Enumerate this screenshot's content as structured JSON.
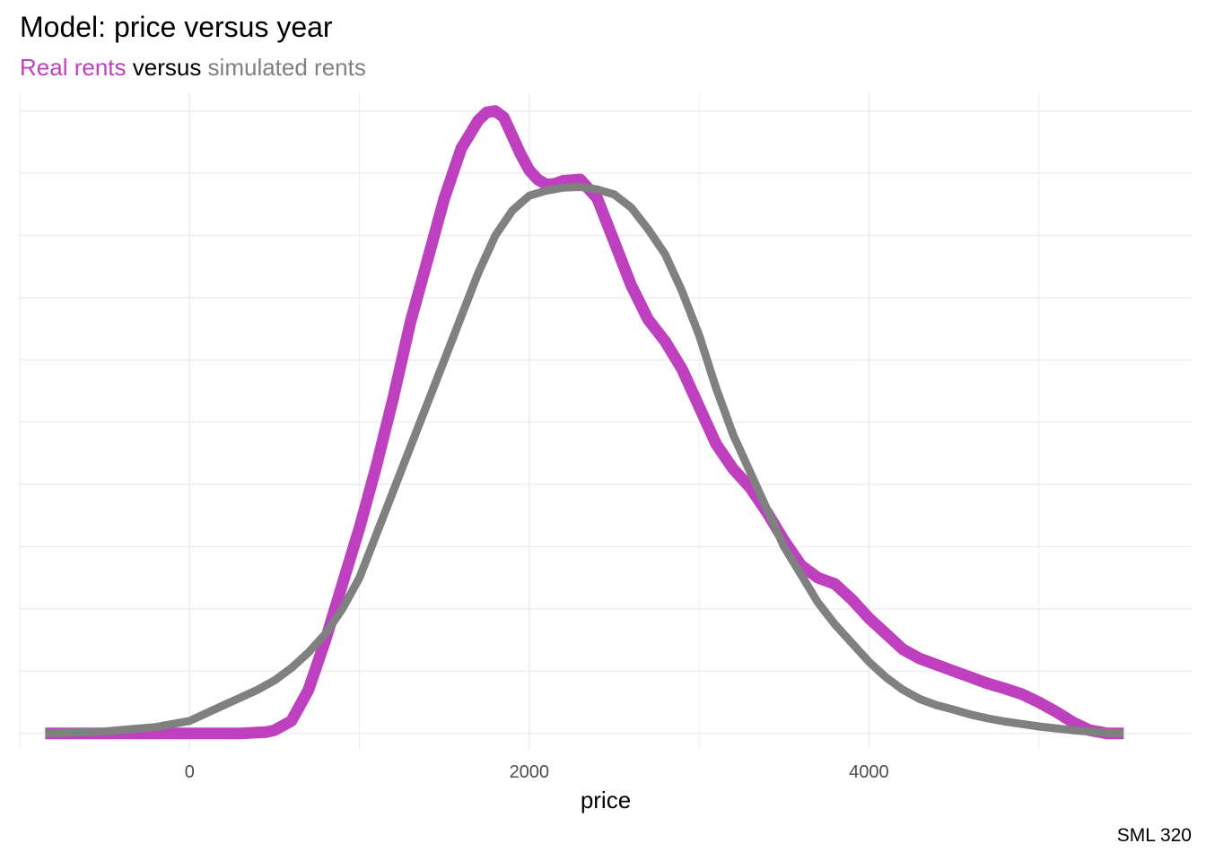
{
  "title": "Model: price versus year",
  "subtitle": {
    "part1": "Real rents",
    "part2": "versus",
    "part3": "simulated rents",
    "color1": "#BF40BF",
    "color2": "#000000",
    "color3": "#808080"
  },
  "caption": "SML 320",
  "chart_data": {
    "type": "line",
    "title": "Model: price versus year",
    "xlabel": "price",
    "ylabel": "",
    "xlim": [
      -1000,
      5900
    ],
    "ylim": [
      -0.025,
      1.03
    ],
    "xticks": [
      0,
      2000,
      4000
    ],
    "xtick_labels": [
      "0",
      "2000",
      "4000"
    ],
    "y_gridlines": [
      0,
      0.1,
      0.2,
      0.3,
      0.4,
      0.5,
      0.6,
      0.7,
      0.8,
      0.9,
      1.0
    ],
    "grid": true,
    "legend": "none",
    "y_axis_labels_shown": false,
    "series": [
      {
        "name": "Real rents",
        "color": "#BF40BF",
        "stroke": "thick",
        "x": [
          -850,
          -500,
          0,
          300,
          450,
          500,
          600,
          700,
          800,
          900,
          1000,
          1100,
          1200,
          1300,
          1400,
          1500,
          1600,
          1700,
          1750,
          1800,
          1850,
          1900,
          1950,
          2000,
          2050,
          2100,
          2150,
          2200,
          2300,
          2400,
          2500,
          2600,
          2700,
          2800,
          2900,
          3000,
          3100,
          3200,
          3300,
          3400,
          3500,
          3600,
          3700,
          3800,
          3900,
          4000,
          4100,
          4200,
          4300,
          4400,
          4500,
          4600,
          4700,
          4800,
          4900,
          5000,
          5100,
          5200,
          5300,
          5400,
          5500
        ],
        "y": [
          0,
          0,
          0,
          0,
          0.002,
          0.005,
          0.02,
          0.07,
          0.15,
          0.24,
          0.33,
          0.43,
          0.54,
          0.66,
          0.76,
          0.86,
          0.94,
          0.985,
          0.998,
          1.0,
          0.99,
          0.96,
          0.93,
          0.905,
          0.89,
          0.882,
          0.883,
          0.888,
          0.89,
          0.86,
          0.79,
          0.72,
          0.665,
          0.63,
          0.585,
          0.525,
          0.465,
          0.425,
          0.395,
          0.355,
          0.31,
          0.27,
          0.25,
          0.24,
          0.215,
          0.185,
          0.16,
          0.135,
          0.12,
          0.11,
          0.1,
          0.09,
          0.08,
          0.072,
          0.063,
          0.05,
          0.035,
          0.018,
          0.005,
          0,
          0
        ]
      },
      {
        "name": "simulated rents",
        "color": "#808080",
        "stroke": "medium",
        "x": [
          -850,
          -500,
          -200,
          0,
          200,
          400,
          500,
          600,
          700,
          800,
          900,
          1000,
          1100,
          1200,
          1300,
          1400,
          1500,
          1600,
          1700,
          1800,
          1900,
          2000,
          2100,
          2200,
          2300,
          2400,
          2500,
          2600,
          2700,
          2800,
          2900,
          3000,
          3100,
          3200,
          3300,
          3400,
          3500,
          3600,
          3700,
          3800,
          3900,
          4000,
          4100,
          4200,
          4300,
          4400,
          4500,
          4600,
          4700,
          4800,
          4900,
          5000,
          5100,
          5200,
          5300,
          5400,
          5500
        ],
        "y": [
          0,
          0.003,
          0.01,
          0.02,
          0.045,
          0.07,
          0.085,
          0.105,
          0.13,
          0.16,
          0.2,
          0.25,
          0.32,
          0.39,
          0.46,
          0.53,
          0.6,
          0.67,
          0.74,
          0.8,
          0.84,
          0.864,
          0.872,
          0.877,
          0.878,
          0.874,
          0.866,
          0.845,
          0.81,
          0.77,
          0.71,
          0.64,
          0.555,
          0.48,
          0.42,
          0.36,
          0.3,
          0.255,
          0.21,
          0.175,
          0.145,
          0.115,
          0.09,
          0.07,
          0.055,
          0.045,
          0.038,
          0.03,
          0.024,
          0.019,
          0.015,
          0.011,
          0.008,
          0.005,
          0.003,
          0.001,
          0
        ]
      }
    ]
  }
}
